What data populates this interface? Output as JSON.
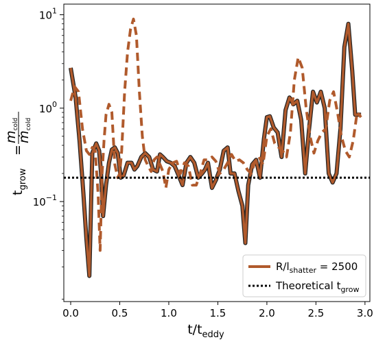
{
  "chart_data": {
    "type": "line",
    "xlabel": "t/t",
    "xlabel_sub": "eddy",
    "ylabel_main": "t",
    "ylabel_sub": "grow",
    "ylabel_eq": "=",
    "ylabel_frac_num": "m",
    "ylabel_frac_num_sub": "cold",
    "ylabel_frac_den": "ṁ",
    "ylabel_frac_den_sub": "cold",
    "x_scale": "linear",
    "y_scale": "log",
    "xlim": [
      -0.07,
      3.05
    ],
    "ylim": [
      0.0085,
      13
    ],
    "x_ticks": [
      {
        "value": 0.0,
        "label": "0.0"
      },
      {
        "value": 0.5,
        "label": "0.5"
      },
      {
        "value": 1.0,
        "label": "1.0"
      },
      {
        "value": 1.5,
        "label": "1.5"
      },
      {
        "value": 2.0,
        "label": "2.0"
      },
      {
        "value": 2.5,
        "label": "2.5"
      },
      {
        "value": 3.0,
        "label": "3.0"
      }
    ],
    "y_ticks": [
      {
        "value": 0.1,
        "base": "10",
        "exp": "−1"
      },
      {
        "value": 1,
        "base": "10",
        "exp": "0"
      },
      {
        "value": 10,
        "base": "10",
        "exp": "1"
      }
    ],
    "grid": false,
    "legend_position": "bottom-right",
    "legend": [
      {
        "label_main": "R/l",
        "label_sub": "shatter",
        "label_rest": " = 2500",
        "style": "solid"
      },
      {
        "label_main": "Theoretical t",
        "label_sub": "grow",
        "label_rest": "",
        "style": "dotted"
      }
    ],
    "colors": {
      "series": "#b05a2c",
      "outline": "#222222",
      "reference": "#000000"
    },
    "series": [
      {
        "name": "R/lshatter = 2500",
        "style": "solid",
        "x": [
          0.0,
          0.05,
          0.09,
          0.13,
          0.16,
          0.19,
          0.22,
          0.26,
          0.29,
          0.31,
          0.33,
          0.36,
          0.39,
          0.42,
          0.45,
          0.48,
          0.51,
          0.54,
          0.58,
          0.62,
          0.65,
          0.68,
          0.72,
          0.76,
          0.8,
          0.84,
          0.88,
          0.91,
          0.94,
          0.98,
          1.02,
          1.06,
          1.1,
          1.14,
          1.18,
          1.22,
          1.26,
          1.3,
          1.34,
          1.37,
          1.4,
          1.44,
          1.48,
          1.52,
          1.56,
          1.6,
          1.63,
          1.67,
          1.71,
          1.75,
          1.78,
          1.81,
          1.85,
          1.89,
          1.93,
          1.97,
          2.0,
          2.03,
          2.07,
          2.11,
          2.15,
          2.19,
          2.23,
          2.27,
          2.31,
          2.35,
          2.39,
          2.43,
          2.47,
          2.51,
          2.55,
          2.59,
          2.63,
          2.67,
          2.71,
          2.75,
          2.79,
          2.83,
          2.87,
          2.9,
          2.93,
          2.96
        ],
        "y": [
          2.7,
          1.3,
          0.45,
          0.12,
          0.04,
          0.016,
          0.33,
          0.42,
          0.35,
          0.2,
          0.07,
          0.15,
          0.26,
          0.36,
          0.38,
          0.33,
          0.18,
          0.19,
          0.26,
          0.26,
          0.22,
          0.24,
          0.3,
          0.33,
          0.3,
          0.22,
          0.21,
          0.32,
          0.3,
          0.27,
          0.26,
          0.24,
          0.19,
          0.15,
          0.26,
          0.3,
          0.26,
          0.18,
          0.2,
          0.22,
          0.26,
          0.14,
          0.17,
          0.22,
          0.35,
          0.38,
          0.2,
          0.2,
          0.13,
          0.09,
          0.036,
          0.15,
          0.25,
          0.28,
          0.18,
          0.47,
          0.8,
          0.82,
          0.62,
          0.55,
          0.3,
          0.95,
          1.3,
          1.1,
          1.2,
          0.75,
          0.2,
          0.6,
          1.5,
          1.15,
          1.5,
          1.0,
          0.2,
          0.16,
          0.2,
          0.6,
          4.5,
          8.0,
          2.5,
          0.85,
          0.85,
          0.85
        ]
      },
      {
        "name": "dashed",
        "style": "dashed",
        "x": [
          0.0,
          0.04,
          0.08,
          0.12,
          0.16,
          0.19,
          0.22,
          0.25,
          0.28,
          0.3,
          0.32,
          0.34,
          0.36,
          0.39,
          0.42,
          0.45,
          0.48,
          0.5,
          0.52,
          0.55,
          0.58,
          0.61,
          0.64,
          0.67,
          0.7,
          0.73,
          0.76,
          0.79,
          0.82,
          0.85,
          0.88,
          0.91,
          0.94,
          0.97,
          1.0,
          1.04,
          1.08,
          1.12,
          1.16,
          1.2,
          1.24,
          1.28,
          1.32,
          1.36,
          1.4,
          1.44,
          1.48,
          1.52,
          1.56,
          1.6,
          1.64,
          1.68,
          1.72,
          1.76,
          1.8,
          1.84,
          1.88,
          1.92,
          1.96,
          2.0,
          2.04,
          2.08,
          2.12,
          2.16,
          2.2,
          2.24,
          2.28,
          2.32,
          2.36,
          2.4,
          2.44,
          2.48,
          2.52,
          2.56,
          2.6,
          2.64,
          2.68,
          2.72,
          2.76,
          2.8,
          2.84,
          2.88,
          2.92,
          2.96
        ],
        "y": [
          1.2,
          1.7,
          1.5,
          0.6,
          0.35,
          0.32,
          0.38,
          0.35,
          0.12,
          0.03,
          0.2,
          0.45,
          0.85,
          1.1,
          0.9,
          0.25,
          0.18,
          0.2,
          0.35,
          1.5,
          4.0,
          7.0,
          9.0,
          6.0,
          1.5,
          0.5,
          0.28,
          0.24,
          0.21,
          0.28,
          0.3,
          0.25,
          0.21,
          0.14,
          0.22,
          0.26,
          0.27,
          0.2,
          0.26,
          0.24,
          0.15,
          0.15,
          0.2,
          0.28,
          0.28,
          0.3,
          0.27,
          0.2,
          0.22,
          0.26,
          0.32,
          0.27,
          0.28,
          0.26,
          0.22,
          0.2,
          0.27,
          0.3,
          0.25,
          0.5,
          0.6,
          0.42,
          0.38,
          0.35,
          0.3,
          0.55,
          2.0,
          3.5,
          2.7,
          1.0,
          0.5,
          0.33,
          0.45,
          0.55,
          0.6,
          1.2,
          1.5,
          0.9,
          0.5,
          0.35,
          0.3,
          0.45,
          0.9,
          0.8
        ]
      },
      {
        "name": "Theoretical tgrow",
        "style": "dotted",
        "x": [
          -0.07,
          3.05
        ],
        "y": [
          0.18,
          0.18
        ]
      }
    ]
  }
}
